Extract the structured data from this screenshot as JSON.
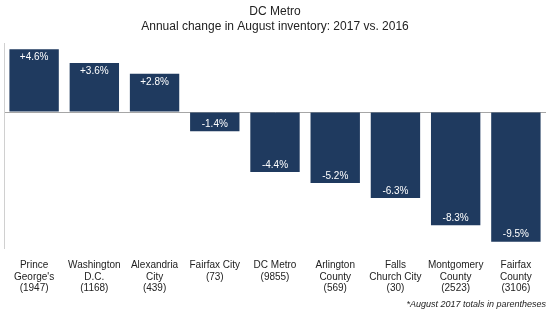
{
  "chart_data": {
    "type": "bar",
    "title": "DC Metro",
    "subtitle": "Annual change in August inventory: 2017 vs. 2016",
    "categories": [
      "Prince George's (1947)",
      "Washington D.C. (1168)",
      "Alexandria City (439)",
      "Fairfax City (73)",
      "DC Metro (9855)",
      "Arlington County (569)",
      "Falls Church City (30)",
      "Montgomery County (2523)",
      "Fairfax County (3106)"
    ],
    "values": [
      4.6,
      3.6,
      2.8,
      -1.4,
      -4.4,
      -5.2,
      -6.3,
      -8.3,
      -9.5
    ],
    "value_labels": [
      "+4.6%",
      "+3.6%",
      "+2.8%",
      "-1.4%",
      "-4.4%",
      "-5.2%",
      "-6.3%",
      "-8.3%",
      "-9.5%"
    ],
    "color": "#1f3a5f",
    "ylim": [
      -10,
      5
    ],
    "yticks": [
      0
    ],
    "grid": true,
    "data_labels": true,
    "tick_labels": "x",
    "annotations": [
      "*August 2017 totals in parentheses"
    ]
  }
}
